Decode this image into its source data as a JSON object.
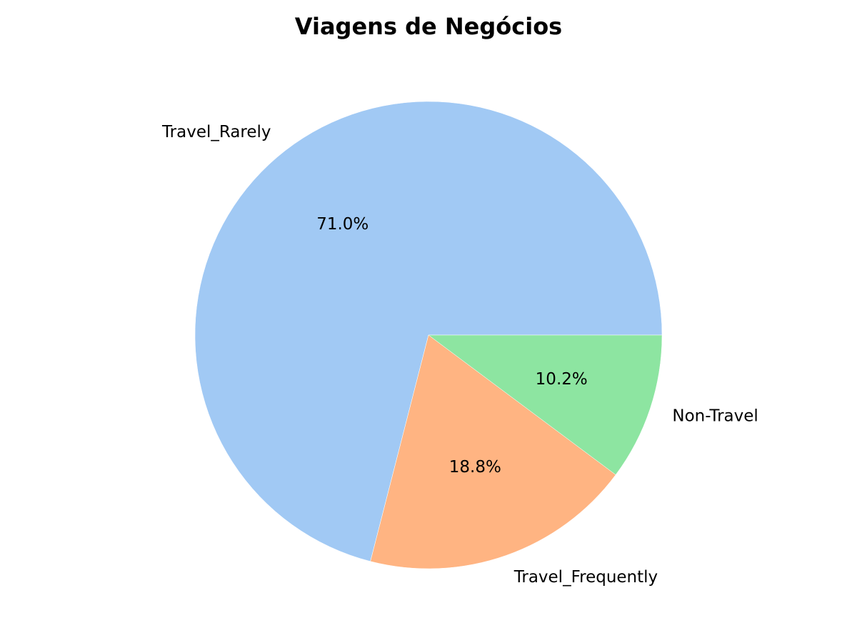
{
  "chart_data": {
    "type": "pie",
    "title": "Viagens de Negócios",
    "start_angle_deg": 0,
    "direction": "counterclockwise",
    "slices": [
      {
        "label": "Travel_Rarely",
        "value": 71.0,
        "pct_label": "71.0%",
        "color": "#a1c9f4"
      },
      {
        "label": "Travel_Frequently",
        "value": 18.8,
        "pct_label": "18.8%",
        "color": "#ffb482"
      },
      {
        "label": "Non-Travel",
        "value": 10.2,
        "pct_label": "10.2%",
        "color": "#8de5a1"
      }
    ]
  }
}
